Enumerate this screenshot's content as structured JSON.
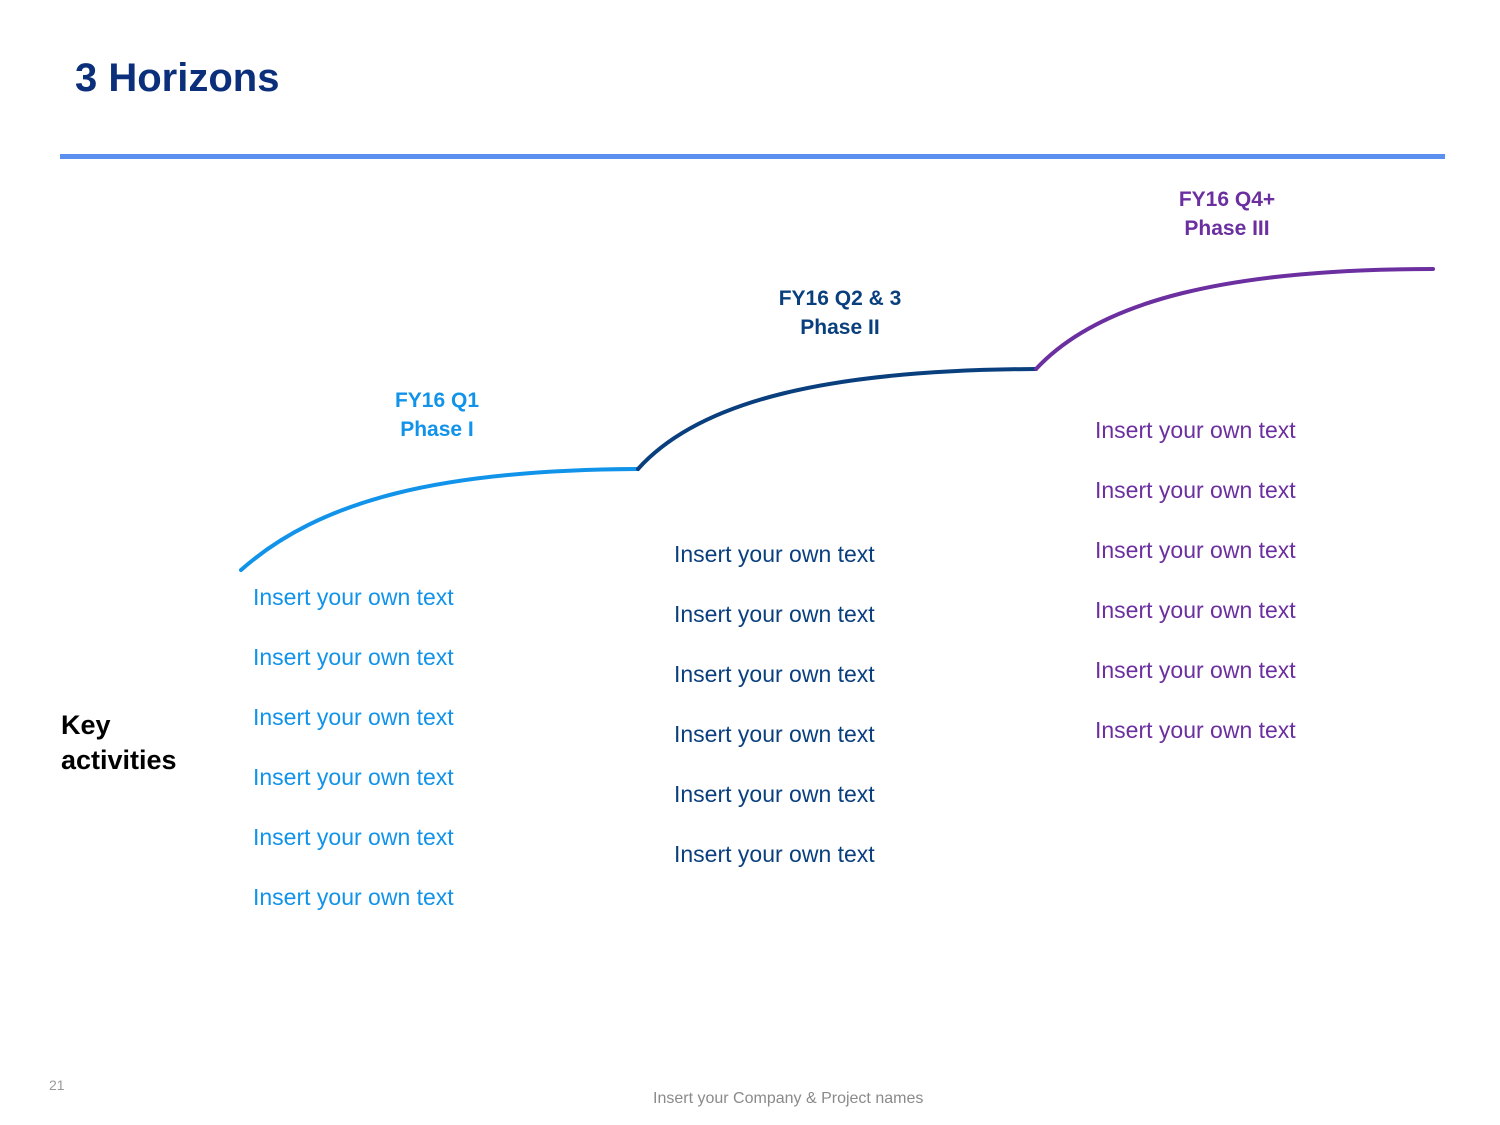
{
  "title": "3 Horizons",
  "colors": {
    "title": "#0b2f7a",
    "rule": "#5b90f0",
    "phase1": "#1193ea",
    "phase2": "#0a3f7e",
    "phase3": "#6b2fa0"
  },
  "phases": [
    {
      "period": "FY16 Q1",
      "phase": "Phase I",
      "items": [
        "Insert your own text",
        "Insert your own text",
        "Insert your own text",
        "Insert your own text",
        "Insert your own text",
        "Insert your own text"
      ]
    },
    {
      "period": "FY16 Q2 & 3",
      "phase": "Phase II",
      "items": [
        "Insert your own text",
        "Insert your own text",
        "Insert your own text",
        "Insert your own text",
        "Insert your own text",
        "Insert your own text"
      ]
    },
    {
      "period": "FY16 Q4+",
      "phase": "Phase III",
      "items": [
        "Insert your own text",
        "Insert your own text",
        "Insert your own text",
        "Insert your own text",
        "Insert your own text",
        "Insert your own text"
      ]
    }
  ],
  "key_activities": {
    "line1": "Key",
    "line2": "activities"
  },
  "footer": {
    "page_number": "21",
    "text": "Insert your Company & Project names"
  }
}
